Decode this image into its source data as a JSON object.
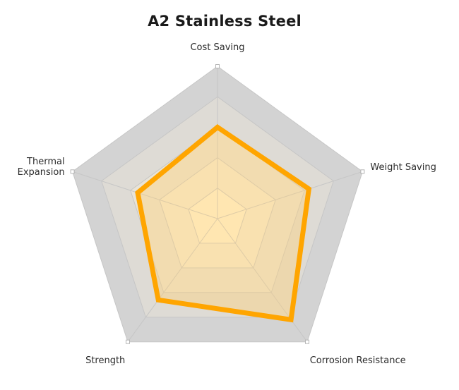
{
  "chart_data": {
    "type": "radar",
    "title": "A2 Stainless Steel",
    "axes": [
      "Cost Saving",
      "Weight Saving",
      "Corrosion Resistance",
      "Strength",
      "Thermal Expansion"
    ],
    "values": [
      0.6,
      0.63,
      0.82,
      0.66,
      0.55
    ],
    "range": [
      0,
      1
    ],
    "rings": 5,
    "colors": {
      "line": "#FFA500",
      "fill": "#FFD27A",
      "ring_outer": "#D3D3D3",
      "ring_inner": "#FFF4DA",
      "grid_line": "#C6C6C6"
    }
  }
}
